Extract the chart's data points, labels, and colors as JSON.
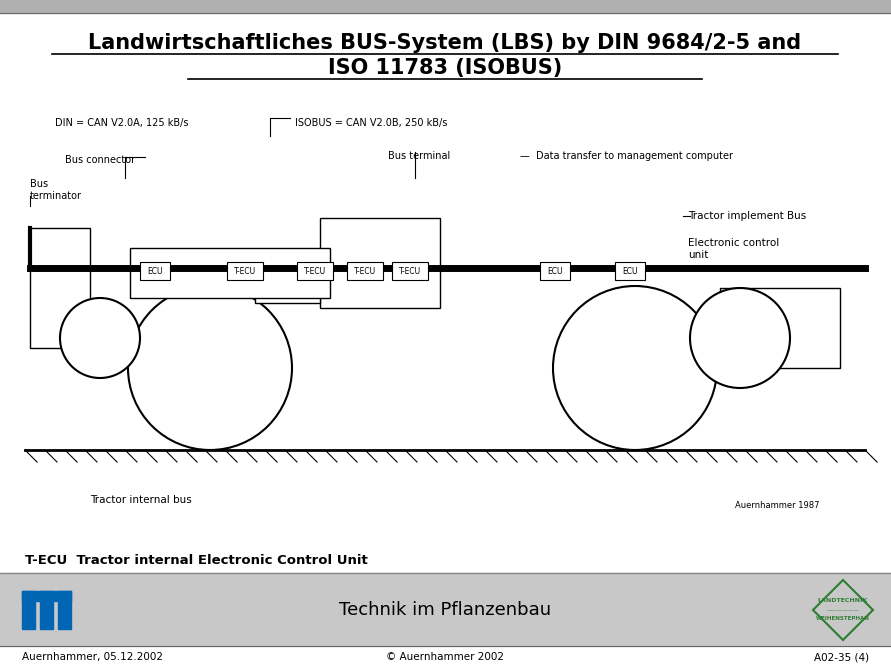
{
  "title_line1": "Landwirtschaftliches BUS-System (LBS) by DIN 9684/2-5 and",
  "title_line2": "ISO 11783 (ISOBUS)",
  "background_color": "#ffffff",
  "footer_bar_color": "#c8c8c8",
  "footer_text_center": "Technik im Pflanzenbau",
  "footer_text_left": "Auernhammer, 05.12.2002",
  "footer_text_center_bottom": "© Auernhammer 2002",
  "footer_text_right": "A02-35 (4)",
  "tecu_text": "T-ECU  Tractor internal Electronic Control Unit",
  "tum_color": "#0066b3",
  "logo_color": "#2e7d32",
  "top_bar_color": "#b0b0b0",
  "din_label": "DIN = CAN V2.0A, 125 kB/s",
  "isobus_label": "ISOBUS = CAN V2.0B, 250 kB/s",
  "bus_connector": "Bus connector",
  "bus_terminator": "Bus\nterminator",
  "bus_terminal": "Bus terminal",
  "data_transfer": "—  Data transfer to management computer",
  "tractor_implement_bus": "Tractor implement Bus",
  "electronic_control": "Electronic control\nunit",
  "tractor_internal_bus": "Tractor internal bus",
  "auernhammer_label": "Auernhammer 1987"
}
